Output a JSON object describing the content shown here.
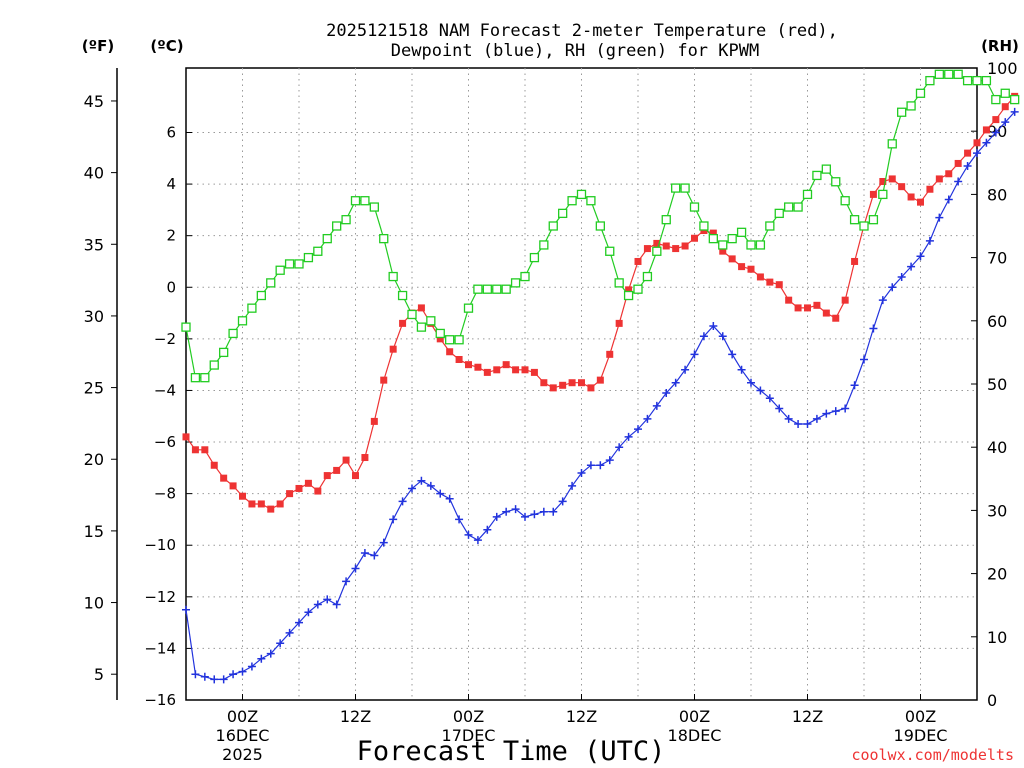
{
  "chart_data": {
    "type": "line",
    "title_line1": "2025121518 NAM Forecast 2-meter Temperature (red),",
    "title_line2": "Dewpoint (blue), RH (green) for KPWM",
    "xlabel": "Forecast Time (UTC)",
    "credit": "coolwx.com/modelts",
    "unit_f": "(ºF)",
    "unit_c": "(ºC)",
    "unit_rh": "(RH)",
    "x_hours_range": [
      0,
      84
    ],
    "x_ticks": [
      {
        "hour": 6,
        "line1": "00Z",
        "line2": "16DEC",
        "line3": "2025"
      },
      {
        "hour": 18,
        "line1": "12Z",
        "line2": "",
        "line3": ""
      },
      {
        "hour": 30,
        "line1": "00Z",
        "line2": "17DEC",
        "line3": ""
      },
      {
        "hour": 42,
        "line1": "12Z",
        "line2": "",
        "line3": ""
      },
      {
        "hour": 54,
        "line1": "00Z",
        "line2": "18DEC",
        "line3": ""
      },
      {
        "hour": 66,
        "line1": "12Z",
        "line2": "",
        "line3": ""
      },
      {
        "hour": 78,
        "line1": "00Z",
        "line2": "19DEC",
        "line3": ""
      }
    ],
    "celsius_range": [
      -16,
      8.5
    ],
    "celsius_ticks": [
      "−16",
      "−14",
      "−12",
      "−10",
      "−8",
      "−6",
      "−4",
      "−2",
      "0",
      "2",
      "4",
      "6"
    ],
    "fahrenheit_ticks": [
      "5",
      "10",
      "15",
      "20",
      "25",
      "30",
      "35",
      "40",
      "45"
    ],
    "rh_range": [
      0,
      100
    ],
    "rh_ticks": [
      "0",
      "10",
      "20",
      "30",
      "40",
      "50",
      "60",
      "70",
      "80",
      "90",
      "100"
    ],
    "series": [
      {
        "name": "Temperature (ºC)",
        "color": "#ee3333",
        "marker": "filled-square",
        "values": [
          -5.8,
          -6.3,
          -6.3,
          -6.9,
          -7.4,
          -7.7,
          -8.1,
          -8.4,
          -8.4,
          -8.6,
          -8.4,
          -8.0,
          -7.8,
          -7.6,
          -7.9,
          -7.3,
          -7.1,
          -6.7,
          -7.3,
          -6.6,
          -5.2,
          -3.6,
          -2.4,
          -1.4,
          -1.0,
          -0.8,
          -1.4,
          -2.0,
          -2.5,
          -2.8,
          -3.0,
          -3.1,
          -3.3,
          -3.2,
          -3.0,
          -3.2,
          -3.2,
          -3.3,
          -3.7,
          -3.9,
          -3.8,
          -3.7,
          -3.7,
          -3.9,
          -3.6,
          -2.6,
          -1.4,
          -0.1,
          1.0,
          1.5,
          1.7,
          1.6,
          1.5,
          1.6,
          1.9,
          2.2,
          2.1,
          1.4,
          1.1,
          0.8,
          0.7,
          0.4,
          0.2,
          0.1,
          -0.5,
          -0.8,
          -0.8,
          -0.7,
          -1.0,
          -1.2,
          -0.5,
          1.0,
          2.4,
          3.6,
          4.1,
          4.2,
          3.9,
          3.5,
          3.3,
          3.8,
          4.2,
          4.4,
          4.8,
          5.2,
          5.6,
          6.1,
          6.5,
          7.0,
          7.4
        ]
      },
      {
        "name": "Dewpoint (ºC)",
        "color": "#2233dd",
        "marker": "plus",
        "values": [
          -12.5,
          -15.0,
          -15.1,
          -15.2,
          -15.2,
          -15.0,
          -14.9,
          -14.7,
          -14.4,
          -14.2,
          -13.8,
          -13.4,
          -13.0,
          -12.6,
          -12.3,
          -12.1,
          -12.3,
          -11.4,
          -10.9,
          -10.3,
          -10.4,
          -9.9,
          -9.0,
          -8.3,
          -7.8,
          -7.5,
          -7.7,
          -8.0,
          -8.2,
          -9.0,
          -9.6,
          -9.8,
          -9.4,
          -8.9,
          -8.7,
          -8.6,
          -8.9,
          -8.8,
          -8.7,
          -8.7,
          -8.3,
          -7.7,
          -7.2,
          -6.9,
          -6.9,
          -6.7,
          -6.2,
          -5.8,
          -5.5,
          -5.1,
          -4.6,
          -4.1,
          -3.7,
          -3.2,
          -2.6,
          -1.9,
          -1.5,
          -1.9,
          -2.6,
          -3.2,
          -3.7,
          -4.0,
          -4.3,
          -4.7,
          -5.1,
          -5.3,
          -5.3,
          -5.1,
          -4.9,
          -4.8,
          -4.7,
          -3.8,
          -2.8,
          -1.6,
          -0.5,
          0.0,
          0.4,
          0.8,
          1.2,
          1.8,
          2.7,
          3.4,
          4.1,
          4.7,
          5.2,
          5.6,
          6.0,
          6.4,
          6.8
        ]
      },
      {
        "name": "RH (%)",
        "color": "#22cc22",
        "marker": "open-square",
        "values": [
          59,
          51,
          51,
          53,
          55,
          58,
          60,
          62,
          64,
          66,
          68,
          69,
          69,
          70,
          71,
          73,
          75,
          76,
          79,
          79,
          78,
          73,
          67,
          64,
          61,
          59,
          60,
          58,
          57,
          57,
          62,
          65,
          65,
          65,
          65,
          66,
          67,
          70,
          72,
          75,
          77,
          79,
          80,
          79,
          75,
          71,
          66,
          64,
          65,
          67,
          71,
          76,
          81,
          81,
          78,
          75,
          73,
          72,
          73,
          74,
          72,
          72,
          75,
          77,
          78,
          78,
          80,
          83,
          84,
          82,
          79,
          76,
          75,
          76,
          80,
          88,
          93,
          94,
          96,
          98,
          99,
          99,
          99,
          98,
          98,
          98,
          95,
          96,
          95
        ]
      }
    ]
  }
}
